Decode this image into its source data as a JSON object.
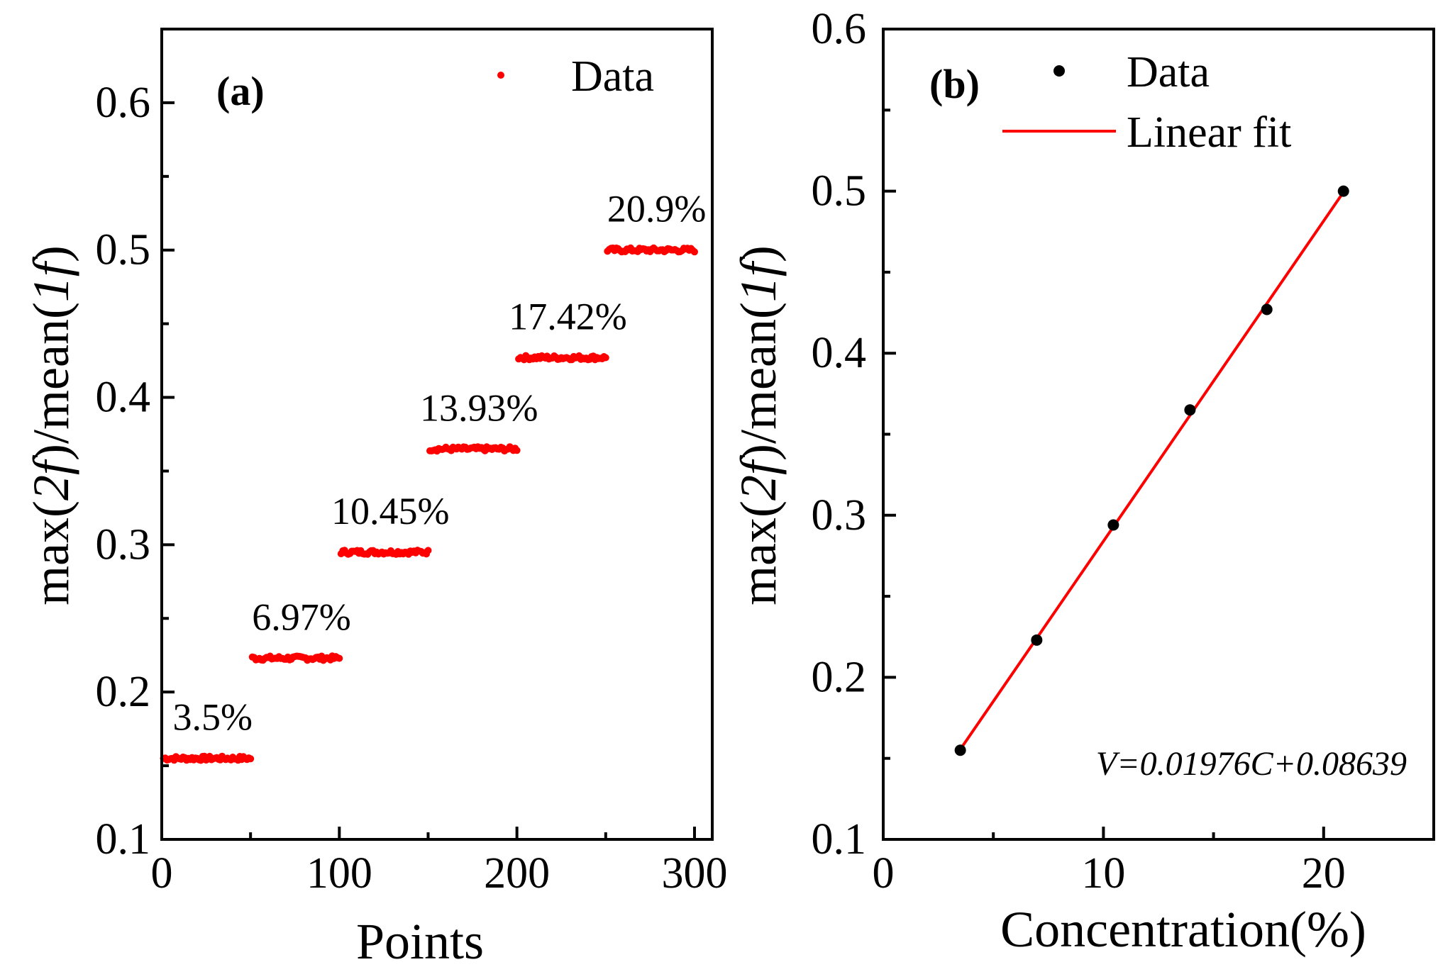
{
  "chart_data": [
    {
      "panel_label": "(a)",
      "type": "scatter",
      "xlabel": "Points",
      "ylabel": {
        "pre": "max(",
        "it1": "2f",
        "mid": ")/mean(",
        "it2": "1f",
        "post": ")"
      },
      "xlim": [
        0,
        310
      ],
      "ylim": [
        0.1,
        0.65
      ],
      "xticks": [
        0,
        100,
        200,
        300
      ],
      "xtick_labels": [
        "0",
        "100",
        "200",
        "300"
      ],
      "yticks": [
        0.1,
        0.2,
        0.3,
        0.4,
        0.5,
        0.6
      ],
      "ytick_labels": [
        "0.1",
        "0.2",
        "0.3",
        "0.4",
        "0.5",
        "0.6"
      ],
      "legend": {
        "position": "top-right",
        "entries": [
          {
            "label": "Data",
            "marker": "dot",
            "color": "#ff0000"
          }
        ]
      },
      "color": "#ff0000",
      "segments": [
        {
          "x_start": 1,
          "x_end": 50,
          "y": 0.155,
          "label": "3.5%"
        },
        {
          "x_start": 51,
          "x_end": 100,
          "y": 0.223,
          "label": "6.97%"
        },
        {
          "x_start": 101,
          "x_end": 150,
          "y": 0.295,
          "label": "10.45%"
        },
        {
          "x_start": 151,
          "x_end": 200,
          "y": 0.365,
          "label": "13.93%"
        },
        {
          "x_start": 201,
          "x_end": 250,
          "y": 0.427,
          "label": "17.42%"
        },
        {
          "x_start": 251,
          "x_end": 300,
          "y": 0.5,
          "label": "20.9%"
        }
      ]
    },
    {
      "panel_label": "(b)",
      "type": "scatter",
      "xlabel": "Concentration(%)",
      "ylabel": {
        "pre": "max(",
        "it1": "2f",
        "mid": ")/mean(",
        "it2": "1f",
        "post": ")"
      },
      "xlim": [
        0,
        25
      ],
      "ylim": [
        0.1,
        0.6
      ],
      "xticks": [
        0,
        10,
        20
      ],
      "xtick_labels": [
        "0",
        "10",
        "20"
      ],
      "yticks": [
        0.1,
        0.2,
        0.3,
        0.4,
        0.5,
        0.6
      ],
      "ytick_labels": [
        "0.1",
        "0.2",
        "0.3",
        "0.4",
        "0.5",
        "0.6"
      ],
      "legend": {
        "position": "top-right",
        "entries": [
          {
            "label": "Data",
            "marker": "dot",
            "color": "#000000"
          },
          {
            "label": "Linear fit",
            "marker": "line",
            "color": "#ff0000"
          }
        ]
      },
      "series": [
        {
          "name": "Data",
          "x": [
            3.5,
            6.97,
            10.45,
            13.93,
            17.42,
            20.9
          ],
          "y": [
            0.155,
            0.223,
            0.294,
            0.365,
            0.427,
            0.5
          ],
          "color": "#000000"
        }
      ],
      "fit": {
        "name": "Linear fit",
        "slope": 0.01976,
        "intercept": 0.08639,
        "x_range": [
          3.5,
          20.9
        ],
        "color": "#ff0000"
      },
      "equation": "V=0.01976C+0.08639"
    }
  ]
}
